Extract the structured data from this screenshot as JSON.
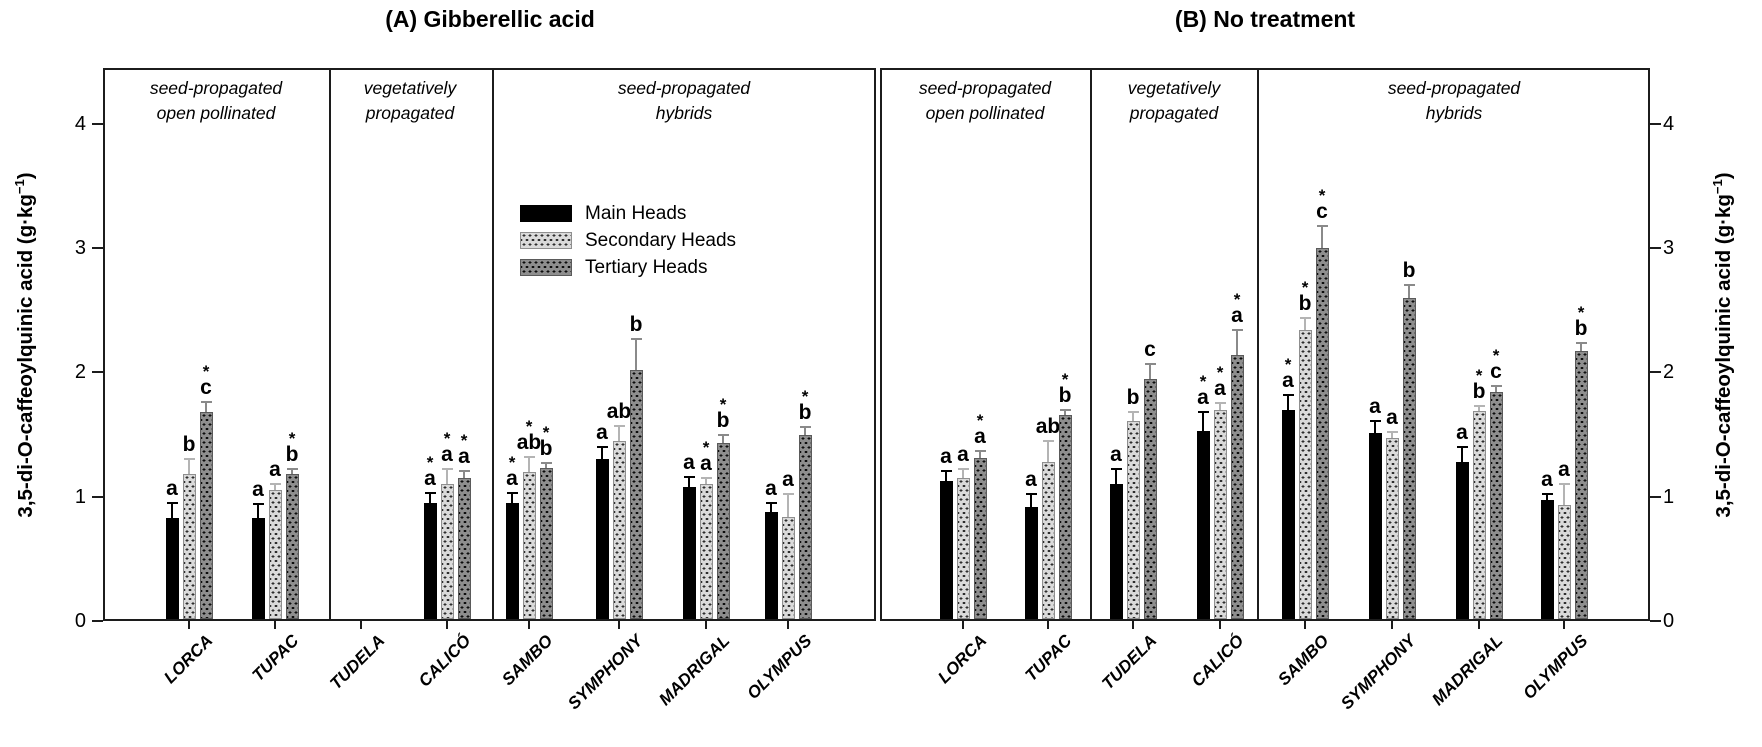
{
  "y_axis": {
    "label_main": "3,5-di-O-caffeoylquinic acid (g·kg",
    "label_sup": "−1",
    "label_close": ")"
  },
  "legend": {
    "items": [
      {
        "label": "Main Heads",
        "series": "main",
        "color": "#000000"
      },
      {
        "label": "Secondary Heads",
        "series": "secondary",
        "color": "#dadada"
      },
      {
        "label": "Tertiary Heads",
        "series": "tertiary",
        "color": "#8e8e8e"
      }
    ]
  },
  "chart_data": [
    {
      "type": "bar",
      "title": "(A) Gibberellic acid",
      "ylabel": "3,5-di-O-caffeoylquinic acid (g·kg−1)",
      "ylim": [
        0,
        4.45
      ],
      "yticks": [
        0,
        1,
        2,
        3,
        4
      ],
      "grid": false,
      "sections": [
        {
          "line1": "seed-propagated",
          "line2": "open pollinated",
          "cultivars": [
            "LORCA",
            "TUPAC"
          ]
        },
        {
          "line1": "vegetatively",
          "line2": "propagated",
          "cultivars": [
            "TUDELA",
            "CALICÓ"
          ]
        },
        {
          "line1": "seed-propagated",
          "line2": "hybrids",
          "cultivars": [
            "SAMBO",
            "SYMPHONY",
            "MADRIGAL",
            "OLYMPUS"
          ]
        }
      ],
      "categories": [
        "LORCA",
        "TUPAC",
        "TUDELA",
        "CALICÓ",
        "SAMBO",
        "SYMPHONY",
        "MADRIGAL",
        "OLYMPUS"
      ],
      "series": [
        {
          "name": "Main Heads",
          "values": [
            0.83,
            0.83,
            null,
            0.95,
            0.95,
            1.3,
            1.08,
            0.88
          ],
          "errors": [
            0.12,
            0.11,
            null,
            0.08,
            0.08,
            0.1,
            0.08,
            0.07
          ],
          "letters": [
            "a",
            "a",
            null,
            "a",
            "a",
            "a",
            "a",
            "a"
          ],
          "stars": [
            false,
            false,
            null,
            true,
            true,
            false,
            false,
            false
          ]
        },
        {
          "name": "Secondary Heads",
          "values": [
            1.18,
            1.05,
            null,
            1.1,
            1.2,
            1.45,
            1.1,
            0.84
          ],
          "errors": [
            0.12,
            0.05,
            null,
            0.12,
            0.12,
            0.12,
            0.05,
            0.18
          ],
          "letters": [
            "b",
            "a",
            null,
            "a",
            "ab",
            "ab",
            "a",
            "a"
          ],
          "stars": [
            false,
            false,
            null,
            true,
            true,
            false,
            true,
            false
          ]
        },
        {
          "name": "Tertiary Heads",
          "values": [
            1.68,
            1.18,
            null,
            1.15,
            1.23,
            2.02,
            1.43,
            1.5
          ],
          "errors": [
            0.08,
            0.04,
            null,
            0.06,
            0.04,
            0.25,
            0.07,
            0.06
          ],
          "letters": [
            "c",
            "b",
            null,
            "a",
            "b",
            "b",
            "b",
            "b"
          ],
          "stars": [
            true,
            true,
            null,
            true,
            true,
            false,
            true,
            true
          ]
        }
      ]
    },
    {
      "type": "bar",
      "title": "(B) No treatment",
      "ylabel": "3,5-di-O-caffeoylquinic acid (g·kg−1)",
      "ylim": [
        0,
        4.45
      ],
      "yticks": [
        0,
        1,
        2,
        3,
        4
      ],
      "grid": false,
      "sections": [
        {
          "line1": "seed-propagated",
          "line2": "open pollinated",
          "cultivars": [
            "LORCA",
            "TUPAC"
          ]
        },
        {
          "line1": "vegetatively",
          "line2": "propagated",
          "cultivars": [
            "TUDELA",
            "CALICÓ"
          ]
        },
        {
          "line1": "seed-propagated",
          "line2": "hybrids",
          "cultivars": [
            "SAMBO",
            "SYMPHONY",
            "MADRIGAL",
            "OLYMPUS"
          ]
        }
      ],
      "categories": [
        "LORCA",
        "TUPAC",
        "TUDELA",
        "CALICÓ",
        "SAMBO",
        "SYMPHONY",
        "MADRIGAL",
        "OLYMPUS"
      ],
      "series": [
        {
          "name": "Main Heads",
          "values": [
            1.13,
            0.92,
            1.1,
            1.53,
            1.7,
            1.51,
            1.28,
            0.97
          ],
          "errors": [
            0.08,
            0.1,
            0.12,
            0.15,
            0.12,
            0.1,
            0.12,
            0.05
          ],
          "letters": [
            "a",
            "a",
            "a",
            "a",
            "a",
            "a",
            "a",
            "a"
          ],
          "stars": [
            false,
            false,
            false,
            true,
            true,
            false,
            false,
            false
          ]
        },
        {
          "name": "Secondary Heads",
          "values": [
            1.15,
            1.28,
            1.61,
            1.7,
            2.34,
            1.47,
            1.69,
            0.93
          ],
          "errors": [
            0.07,
            0.17,
            0.07,
            0.05,
            0.1,
            0.05,
            0.04,
            0.17
          ],
          "letters": [
            "a",
            "ab",
            "b",
            "a",
            "b",
            "a",
            "b",
            "a"
          ],
          "stars": [
            false,
            false,
            false,
            true,
            true,
            false,
            true,
            false
          ]
        },
        {
          "name": "Tertiary Heads",
          "values": [
            1.31,
            1.66,
            1.95,
            2.14,
            3.0,
            2.6,
            1.84,
            2.17
          ],
          "errors": [
            0.06,
            0.04,
            0.12,
            0.2,
            0.18,
            0.1,
            0.05,
            0.07
          ],
          "letters": [
            "a",
            "b",
            "c",
            "a",
            "c",
            "b",
            "c",
            "b"
          ],
          "stars": [
            true,
            true,
            false,
            true,
            true,
            false,
            true,
            true
          ]
        }
      ]
    }
  ]
}
